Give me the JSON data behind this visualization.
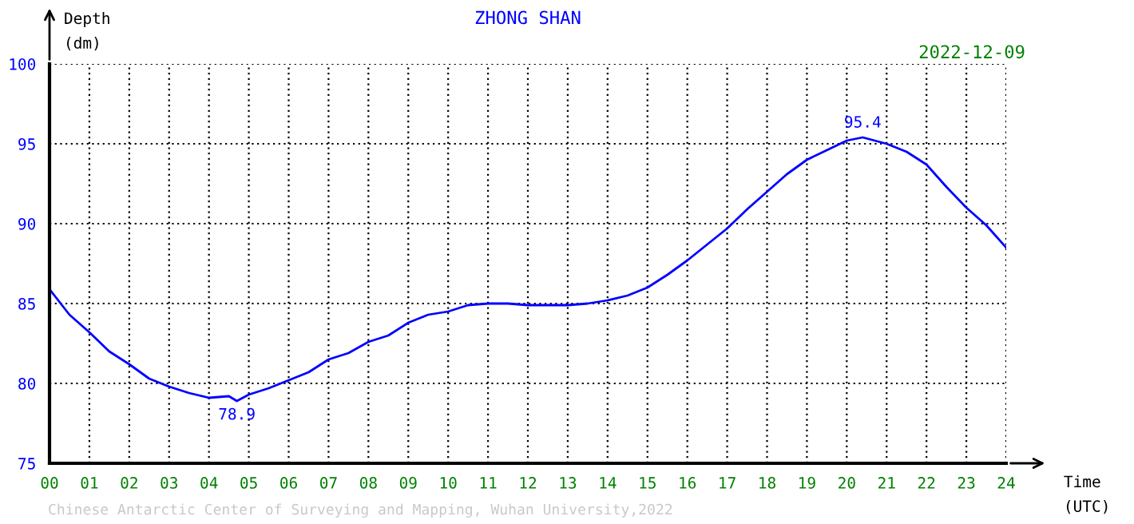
{
  "chart_data": {
    "type": "line",
    "title": "ZHONG SHAN",
    "xlabel": "Time\n(UTC)",
    "ylabel": "Depth\n(dm)",
    "annotations": [
      "2022-12-09",
      "Chinese Antarctic Center of Surveying and Mapping, Wuhan University,2022",
      {
        "text": "95.4",
        "x": 20.4,
        "y": 95.4
      },
      {
        "text": "78.9",
        "x": 4.7,
        "y": 78.9
      }
    ],
    "xlim": [
      0,
      24
    ],
    "ylim": [
      75,
      100
    ],
    "xticks": [
      {
        "value": 0,
        "label": "00"
      },
      {
        "value": 1,
        "label": "01"
      },
      {
        "value": 2,
        "label": "02"
      },
      {
        "value": 3,
        "label": "03"
      },
      {
        "value": 4,
        "label": "04"
      },
      {
        "value": 5,
        "label": "05"
      },
      {
        "value": 6,
        "label": "06"
      },
      {
        "value": 7,
        "label": "07"
      },
      {
        "value": 8,
        "label": "08"
      },
      {
        "value": 9,
        "label": "09"
      },
      10,
      11,
      12,
      13,
      14,
      15,
      16,
      17,
      18,
      19,
      20,
      21,
      22,
      23,
      24
    ],
    "yticks": [
      75,
      80,
      85,
      90,
      95,
      100
    ],
    "grid": true,
    "line_style": "solid",
    "series": [
      {
        "color": "#0000ff",
        "x": [
          0,
          0.5,
          1,
          1.5,
          2,
          2.5,
          3,
          3.5,
          4,
          4.5,
          4.7,
          5,
          5.5,
          6,
          6.5,
          7,
          7.5,
          8,
          8.5,
          9,
          9.5,
          10,
          10.5,
          11,
          11.5,
          12,
          12.5,
          13,
          13.5,
          14,
          14.5,
          15,
          15.5,
          16,
          16.5,
          17,
          17.5,
          18,
          18.5,
          19,
          19.5,
          20,
          20.4,
          21,
          21.5,
          22,
          22.5,
          23,
          23.5,
          24
        ],
        "values": [
          85.9,
          84.3,
          83.2,
          82.0,
          81.2,
          80.3,
          79.8,
          79.4,
          79.1,
          79.2,
          78.9,
          79.3,
          79.7,
          80.2,
          80.7,
          81.5,
          81.9,
          82.6,
          83.0,
          83.8,
          84.3,
          84.5,
          84.9,
          85.0,
          85.0,
          84.9,
          84.9,
          84.9,
          85.0,
          85.2,
          85.5,
          86.0,
          86.8,
          87.7,
          88.7,
          89.7,
          90.9,
          92.0,
          93.1,
          94.0,
          94.6,
          95.2,
          95.4,
          95.0,
          94.5,
          93.7,
          92.3,
          91.0,
          89.9,
          88.5
        ]
      }
    ]
  }
}
